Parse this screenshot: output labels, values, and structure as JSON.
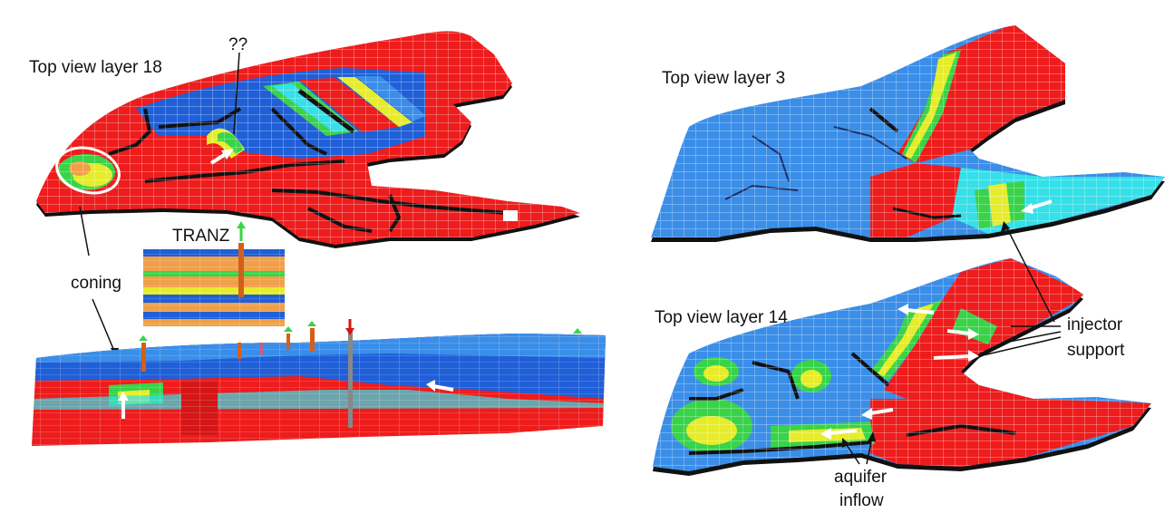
{
  "labels": {
    "top_view_18": "Top view layer 18",
    "question": "??",
    "tranz": "TRANZ",
    "coning": "coning",
    "top_view_3": "Top view layer 3",
    "top_view_14": "Top view layer 14",
    "injector_support_line1": "injector",
    "injector_support_line2": "support",
    "aquifer_inflow_line1": "aquifer",
    "aquifer_inflow_line2": "inflow"
  },
  "colors": {
    "water_red": "#ee1c1c",
    "oil_blue": "#1f5fd8",
    "light_blue": "#3a8ee8",
    "cyan": "#35e0e8",
    "green": "#39d34a",
    "yellow": "#e6ec2a",
    "orange": "#f0a04a",
    "barrier": "#111111",
    "arrow": "#ffffff",
    "circle": "#ffffff"
  },
  "icons": [
    "white-arrow-icon",
    "green-arrow-icon",
    "red-arrow-icon"
  ]
}
